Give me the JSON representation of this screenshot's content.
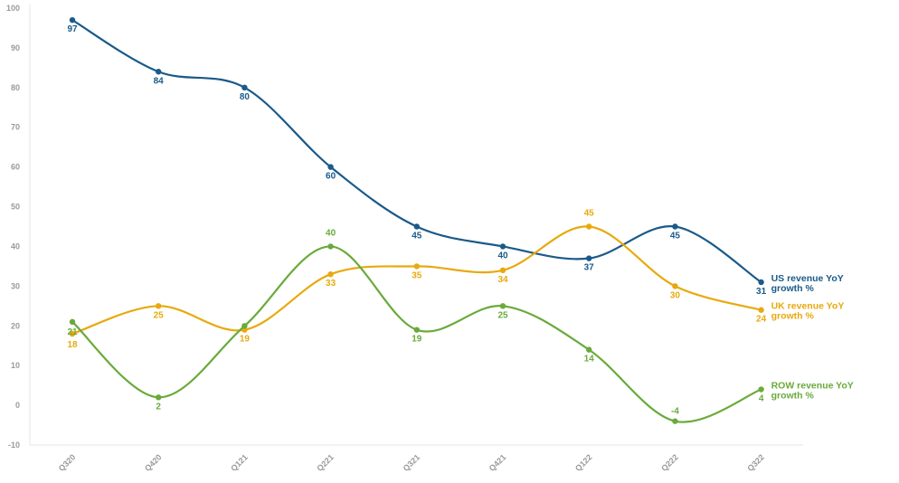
{
  "chart_data": {
    "type": "line",
    "categories": [
      "Q320",
      "Q420",
      "Q121",
      "Q221",
      "Q321",
      "Q421",
      "Q122",
      "Q222",
      "Q322"
    ],
    "ylim": [
      -10,
      100
    ],
    "yticks": [
      -10,
      0,
      10,
      20,
      30,
      40,
      50,
      60,
      70,
      80,
      90,
      100
    ],
    "ytick_labels": [
      "-10",
      "0",
      "10",
      "20",
      "30",
      "40",
      "50",
      "60",
      "70",
      "80",
      "90",
      "100"
    ],
    "grid": false,
    "legend_placement": "right, at line ends",
    "series": [
      {
        "name": "US revenue YoY growth %",
        "legend_lines": [
          "US revenue YoY",
          "growth %"
        ],
        "color": "#1a5a8a",
        "values": [
          97,
          84,
          80,
          60,
          45,
          40,
          37,
          45,
          31
        ],
        "labels": [
          "97",
          "84",
          "80",
          "60",
          "45",
          "40",
          "37",
          "45",
          "31"
        ]
      },
      {
        "name": "UK revenue YoY growth %",
        "legend_lines": [
          "UK revenue YoY",
          "growth %"
        ],
        "color": "#e8a90e",
        "values": [
          18,
          25,
          19,
          33,
          35,
          34,
          45,
          30,
          24
        ],
        "labels": [
          "18",
          "25",
          "19",
          "33",
          "35",
          "34",
          "45",
          "30",
          "24"
        ]
      },
      {
        "name": "ROW revenue YoY growth %",
        "legend_lines": [
          "ROW revenue YoY",
          "growth %"
        ],
        "color": "#6aaa3a",
        "values": [
          21,
          2,
          20,
          40,
          19,
          25,
          14,
          -4,
          4
        ],
        "labels": [
          "21",
          "2",
          "",
          "40",
          "19",
          "25",
          "14",
          "-4",
          "4"
        ]
      }
    ]
  }
}
